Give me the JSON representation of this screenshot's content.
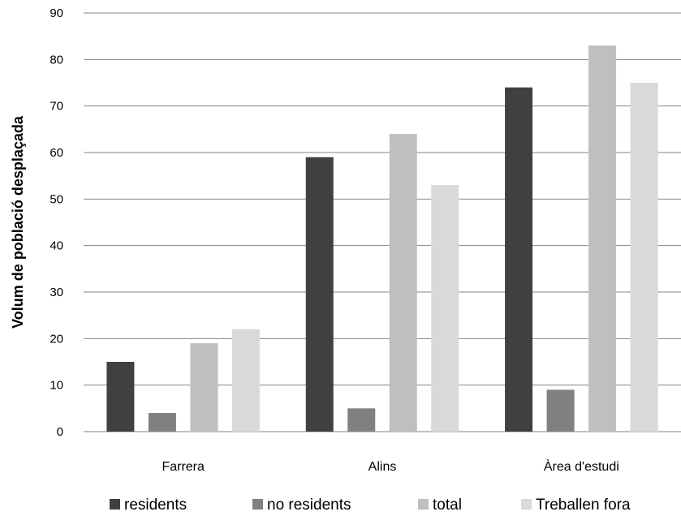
{
  "chart_data": {
    "type": "bar",
    "categories": [
      "Farrera",
      "Alins",
      "Àrea d'estudi"
    ],
    "series": [
      {
        "name": "residents",
        "values": [
          15,
          59,
          74
        ],
        "color": "#404040"
      },
      {
        "name": "no residents",
        "values": [
          4,
          5,
          9
        ],
        "color": "#808080"
      },
      {
        "name": "total",
        "values": [
          19,
          64,
          83
        ],
        "color": "#bfbfbf"
      },
      {
        "name": "Treballen fora",
        "values": [
          22,
          53,
          75
        ],
        "color": "#d9d9d9"
      }
    ],
    "ylabel": "Volum de població desplaçada",
    "ylim": [
      0,
      90
    ],
    "yticks": [
      0,
      10,
      20,
      30,
      40,
      50,
      60,
      70,
      80,
      90
    ],
    "grid": true,
    "legend_position": "bottom"
  }
}
